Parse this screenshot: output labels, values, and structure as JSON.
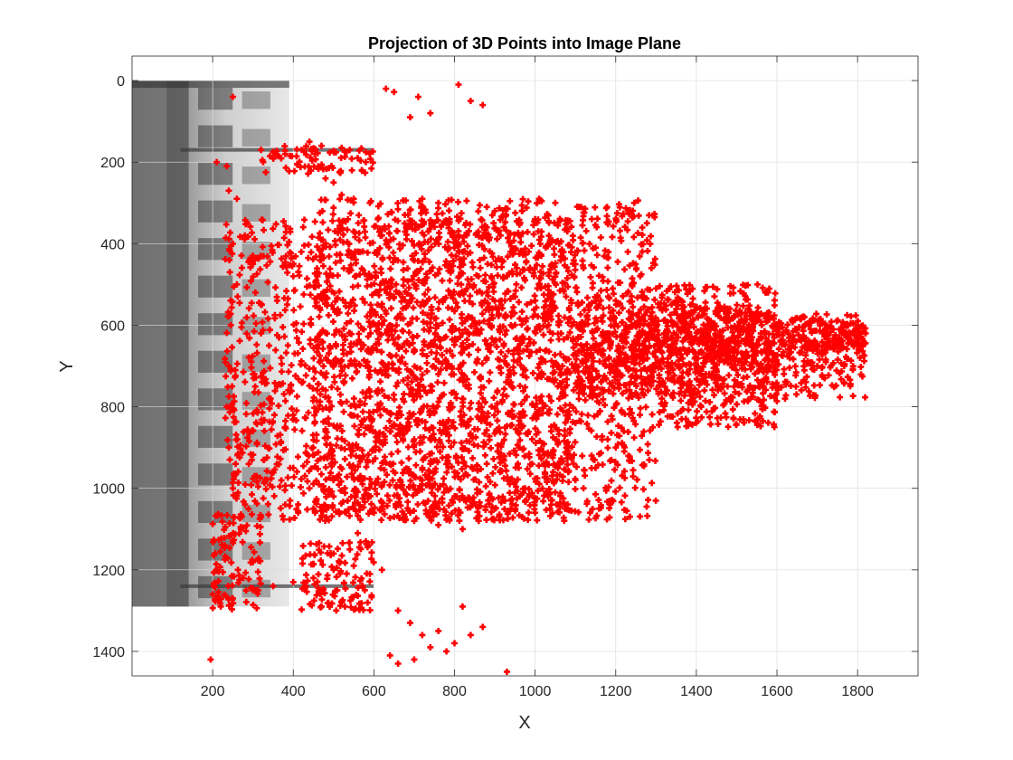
{
  "chart_data": {
    "type": "scatter",
    "title": "Projection of 3D Points into Image Plane",
    "xlabel": "X",
    "ylabel": "Y",
    "xlim": [
      0,
      1950
    ],
    "ylim": [
      1460,
      -60
    ],
    "y_reversed": true,
    "grid": true,
    "xticks": [
      200,
      400,
      600,
      800,
      1000,
      1200,
      1400,
      1600,
      1800
    ],
    "yticks": [
      0,
      200,
      400,
      600,
      800,
      1000,
      1200,
      1400
    ],
    "background_image": {
      "description_icon": "grayscale-building-facade-rotated",
      "x_range": [
        0,
        390
      ],
      "y_range": [
        0,
        1290
      ]
    },
    "marker": "plus",
    "marker_color": "#ff0000",
    "series": [
      {
        "dense_regions": [
          {
            "x_range": [
              230,
              1100
            ],
            "y_range": [
              340,
              1080
            ]
          },
          {
            "x_range": [
              450,
              1300
            ],
            "y_range": [
              290,
              1080
            ]
          },
          {
            "x_range": [
              1100,
              1820
            ],
            "y_range": [
              570,
              780
            ]
          },
          {
            "x_range": [
              1300,
              1600
            ],
            "y_range": [
              500,
              850
            ]
          },
          {
            "x_range": [
              200,
              320
            ],
            "y_range": [
              1060,
              1300
            ]
          },
          {
            "x_range": [
              320,
              600
            ],
            "y_range": [
              160,
              230
            ]
          },
          {
            "x_range": [
              420,
              600
            ],
            "y_range": [
              1130,
              1300
            ]
          }
        ],
        "points": [
          [
            630,
            20
          ],
          [
            650,
            28
          ],
          [
            710,
            40
          ],
          [
            810,
            10
          ],
          [
            840,
            50
          ],
          [
            870,
            60
          ],
          [
            690,
            90
          ],
          [
            740,
            80
          ],
          [
            250,
            40
          ],
          [
            320,
            170
          ],
          [
            350,
            175
          ],
          [
            380,
            180
          ],
          [
            440,
            150
          ],
          [
            470,
            160
          ],
          [
            520,
            165
          ],
          [
            540,
            170
          ],
          [
            560,
            190
          ],
          [
            580,
            200
          ],
          [
            480,
            240
          ],
          [
            500,
            250
          ],
          [
            520,
            280
          ],
          [
            550,
            290
          ],
          [
            590,
            300
          ],
          [
            240,
            270
          ],
          [
            260,
            290
          ],
          [
            210,
            200
          ],
          [
            235,
            210
          ],
          [
            720,
            290
          ],
          [
            760,
            300
          ],
          [
            830,
            295
          ],
          [
            880,
            310
          ],
          [
            900,
            320
          ],
          [
            1010,
            290
          ],
          [
            1050,
            300
          ],
          [
            1000,
            340
          ],
          [
            1080,
            370
          ],
          [
            1150,
            410
          ],
          [
            1230,
            420
          ],
          [
            1240,
            500
          ],
          [
            1300,
            510
          ],
          [
            1350,
            540
          ],
          [
            1420,
            560
          ],
          [
            1480,
            570
          ],
          [
            1540,
            590
          ],
          [
            1600,
            600
          ],
          [
            1680,
            600
          ],
          [
            1740,
            610
          ],
          [
            1800,
            600
          ],
          [
            1820,
            620
          ],
          [
            1780,
            640
          ],
          [
            1700,
            660
          ],
          [
            1620,
            780
          ],
          [
            1580,
            700
          ],
          [
            1500,
            740
          ],
          [
            1420,
            760
          ],
          [
            1380,
            720
          ],
          [
            1460,
            640
          ],
          [
            1520,
            680
          ],
          [
            1560,
            620
          ],
          [
            1180,
            880
          ],
          [
            1200,
            900
          ],
          [
            1220,
            860
          ],
          [
            1260,
            820
          ],
          [
            1280,
            760
          ],
          [
            1300,
            700
          ],
          [
            1150,
            950
          ],
          [
            1100,
            980
          ],
          [
            1050,
            1010
          ],
          [
            1000,
            1060
          ],
          [
            940,
            1030
          ],
          [
            900,
            1050
          ],
          [
            860,
            1080
          ],
          [
            820,
            1100
          ],
          [
            760,
            1090
          ],
          [
            700,
            1080
          ],
          [
            650,
            1070
          ],
          [
            600,
            1060
          ],
          [
            550,
            1050
          ],
          [
            500,
            1020
          ],
          [
            440,
            1000
          ],
          [
            380,
            1040
          ],
          [
            320,
            1070
          ],
          [
            270,
            1100
          ],
          [
            230,
            1140
          ],
          [
            210,
            1200
          ],
          [
            200,
            1260
          ],
          [
            220,
            1290
          ],
          [
            250,
            1270
          ],
          [
            300,
            1250
          ],
          [
            350,
            1240
          ],
          [
            400,
            1230
          ],
          [
            450,
            1220
          ],
          [
            500,
            1200
          ],
          [
            550,
            1190
          ],
          [
            590,
            1210
          ],
          [
            620,
            1200
          ],
          [
            470,
            1290
          ],
          [
            520,
            1280
          ],
          [
            540,
            1150
          ],
          [
            580,
            1130
          ],
          [
            560,
            1110
          ],
          [
            500,
            1160
          ],
          [
            250,
            400
          ],
          [
            260,
            500
          ],
          [
            245,
            600
          ],
          [
            240,
            700
          ],
          [
            235,
            800
          ],
          [
            240,
            900
          ],
          [
            250,
            1000
          ],
          [
            280,
            380
          ],
          [
            300,
            450
          ],
          [
            320,
            550
          ],
          [
            340,
            650
          ],
          [
            360,
            750
          ],
          [
            380,
            850
          ],
          [
            400,
            950
          ],
          [
            420,
            420
          ],
          [
            460,
            480
          ],
          [
            500,
            560
          ],
          [
            540,
            620
          ],
          [
            580,
            700
          ],
          [
            620,
            760
          ],
          [
            660,
            820
          ],
          [
            700,
            880
          ],
          [
            740,
            940
          ],
          [
            780,
            1000
          ],
          [
            820,
            420
          ],
          [
            860,
            480
          ],
          [
            900,
            540
          ],
          [
            940,
            600
          ],
          [
            980,
            660
          ],
          [
            1020,
            720
          ],
          [
            1060,
            780
          ],
          [
            1100,
            840
          ],
          [
            1140,
            700
          ],
          [
            1180,
            620
          ],
          [
            1200,
            540
          ],
          [
            1120,
            460
          ],
          [
            1060,
            400
          ],
          [
            960,
            380
          ],
          [
            880,
            360
          ],
          [
            780,
            350
          ],
          [
            680,
            360
          ],
          [
            620,
            380
          ],
          [
            560,
            420
          ],
          [
            700,
            500
          ],
          [
            760,
            560
          ],
          [
            820,
            620
          ],
          [
            880,
            680
          ],
          [
            940,
            740
          ],
          [
            1000,
            800
          ],
          [
            1040,
            860
          ],
          [
            960,
            900
          ],
          [
            880,
            940
          ],
          [
            800,
            960
          ],
          [
            720,
            980
          ],
          [
            640,
            940
          ],
          [
            560,
            900
          ],
          [
            480,
            860
          ],
          [
            400,
            820
          ],
          [
            340,
            780
          ],
          [
            300,
            720
          ],
          [
            320,
            620
          ],
          [
            360,
            540
          ],
          [
            400,
            480
          ],
          [
            640,
            600
          ],
          [
            700,
            660
          ],
          [
            760,
            720
          ],
          [
            820,
            780
          ],
          [
            880,
            840
          ],
          [
            1240,
            660
          ],
          [
            1260,
            600
          ],
          [
            1320,
            620
          ],
          [
            1360,
            660
          ],
          [
            1400,
            700
          ],
          [
            1440,
            600
          ],
          [
            1700,
            700
          ],
          [
            1640,
            640
          ],
          [
            660,
            1300
          ],
          [
            690,
            1330
          ],
          [
            720,
            1360
          ],
          [
            760,
            1350
          ],
          [
            800,
            1380
          ],
          [
            840,
            1360
          ],
          [
            870,
            1340
          ],
          [
            820,
            1290
          ],
          [
            640,
            1410
          ],
          [
            660,
            1430
          ],
          [
            700,
            1420
          ],
          [
            740,
            1390
          ],
          [
            780,
            1400
          ],
          [
            930,
            1450
          ],
          [
            195,
            1420
          ],
          [
            1040,
            1030
          ],
          [
            1120,
            1000
          ]
        ]
      }
    ]
  }
}
